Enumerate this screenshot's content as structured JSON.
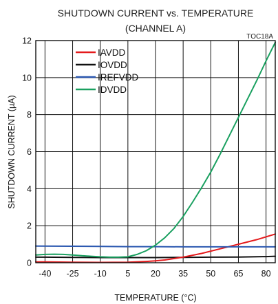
{
  "chart_data": {
    "type": "line",
    "title": "SHUTDOWN CURRENT vs. TEMPERATURE",
    "subtitle": "(CHANNEL A)",
    "tag": "TOC18A",
    "xlabel": "TEMPERATURE (°C)",
    "ylabel": "SHUTDOWN CURRENT  (µA)",
    "xlim": [
      -45,
      85
    ],
    "ylim": [
      0,
      12
    ],
    "xticks": [
      -40,
      -25,
      -10,
      5,
      20,
      35,
      50,
      65,
      80
    ],
    "yticks": [
      0,
      2,
      4,
      6,
      8,
      10,
      12
    ],
    "grid": true,
    "legend_position": "top-left",
    "series": [
      {
        "name": "IAVDD",
        "color": "#e41a1c",
        "x": [
          -45,
          -40,
          -25,
          -10,
          5,
          15,
          20,
          25,
          35,
          45,
          55,
          65,
          75,
          85
        ],
        "y": [
          0.05,
          0.05,
          0.03,
          0.02,
          0.03,
          0.07,
          0.1,
          0.15,
          0.3,
          0.5,
          0.75,
          1.0,
          1.25,
          1.55
        ]
      },
      {
        "name": "IOVDD",
        "color": "#111111",
        "x": [
          -45,
          -40,
          -25,
          -10,
          5,
          20,
          35,
          50,
          65,
          80,
          85
        ],
        "y": [
          0.3,
          0.3,
          0.29,
          0.28,
          0.28,
          0.28,
          0.29,
          0.3,
          0.31,
          0.33,
          0.35
        ]
      },
      {
        "name": "IREFVDD",
        "color": "#2b58b0",
        "x": [
          -45,
          -25,
          -10,
          5,
          20,
          35,
          50,
          65,
          80,
          85
        ],
        "y": [
          0.9,
          0.89,
          0.88,
          0.87,
          0.87,
          0.86,
          0.86,
          0.86,
          0.86,
          0.86
        ]
      },
      {
        "name": "IDVDD",
        "color": "#1aa060",
        "x": [
          -45,
          -40,
          -35,
          -30,
          -25,
          -20,
          -15,
          -10,
          -5,
          0,
          5,
          10,
          15,
          20,
          25,
          30,
          35,
          40,
          45,
          50,
          55,
          60,
          65,
          70,
          75,
          80,
          85
        ],
        "y": [
          0.42,
          0.45,
          0.46,
          0.45,
          0.42,
          0.38,
          0.35,
          0.32,
          0.3,
          0.3,
          0.32,
          0.45,
          0.65,
          0.95,
          1.35,
          1.85,
          2.5,
          3.25,
          4.05,
          4.9,
          5.85,
          6.85,
          7.85,
          8.85,
          9.85,
          10.9,
          11.9
        ]
      }
    ]
  }
}
